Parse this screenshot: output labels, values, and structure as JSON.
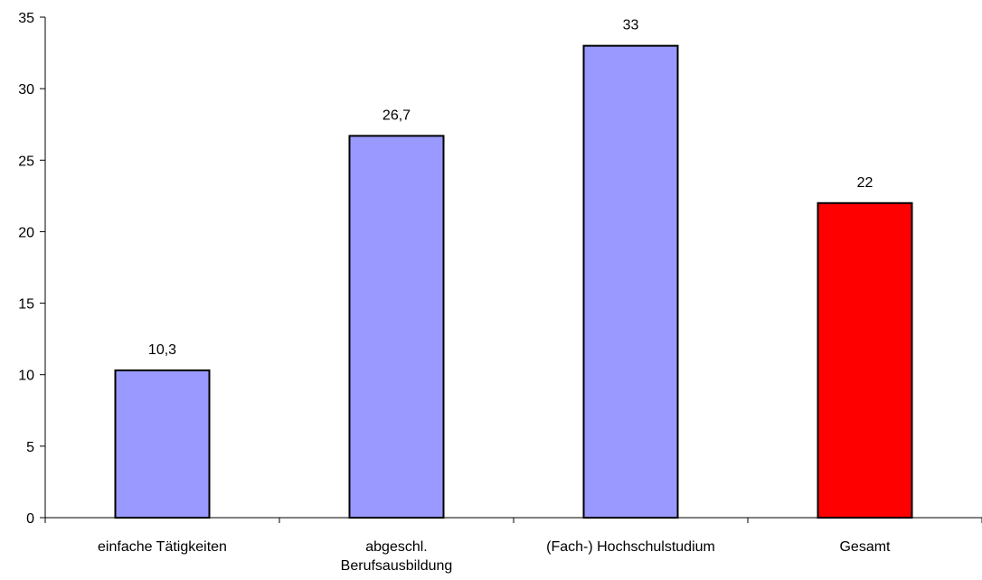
{
  "chart_data": {
    "type": "bar",
    "categories": [
      [
        "einfache Tätigkeiten"
      ],
      [
        "abgeschl.",
        "Berufsausbildung"
      ],
      [
        "(Fach-) Hochschulstudium"
      ],
      [
        "Gesamt"
      ]
    ],
    "values": [
      10.3,
      26.7,
      33,
      22
    ],
    "value_labels": [
      "10,3",
      "26,7",
      "33",
      "22"
    ],
    "bar_colors": [
      "#9999ff",
      "#9999ff",
      "#9999ff",
      "#ff0000"
    ],
    "bar_edge_color": "#000000",
    "ylim": [
      0,
      35
    ],
    "yticks": [
      0,
      5,
      10,
      15,
      20,
      25,
      30,
      35
    ],
    "title": "",
    "xlabel": "",
    "ylabel": "",
    "grid": false,
    "legend": false
  }
}
